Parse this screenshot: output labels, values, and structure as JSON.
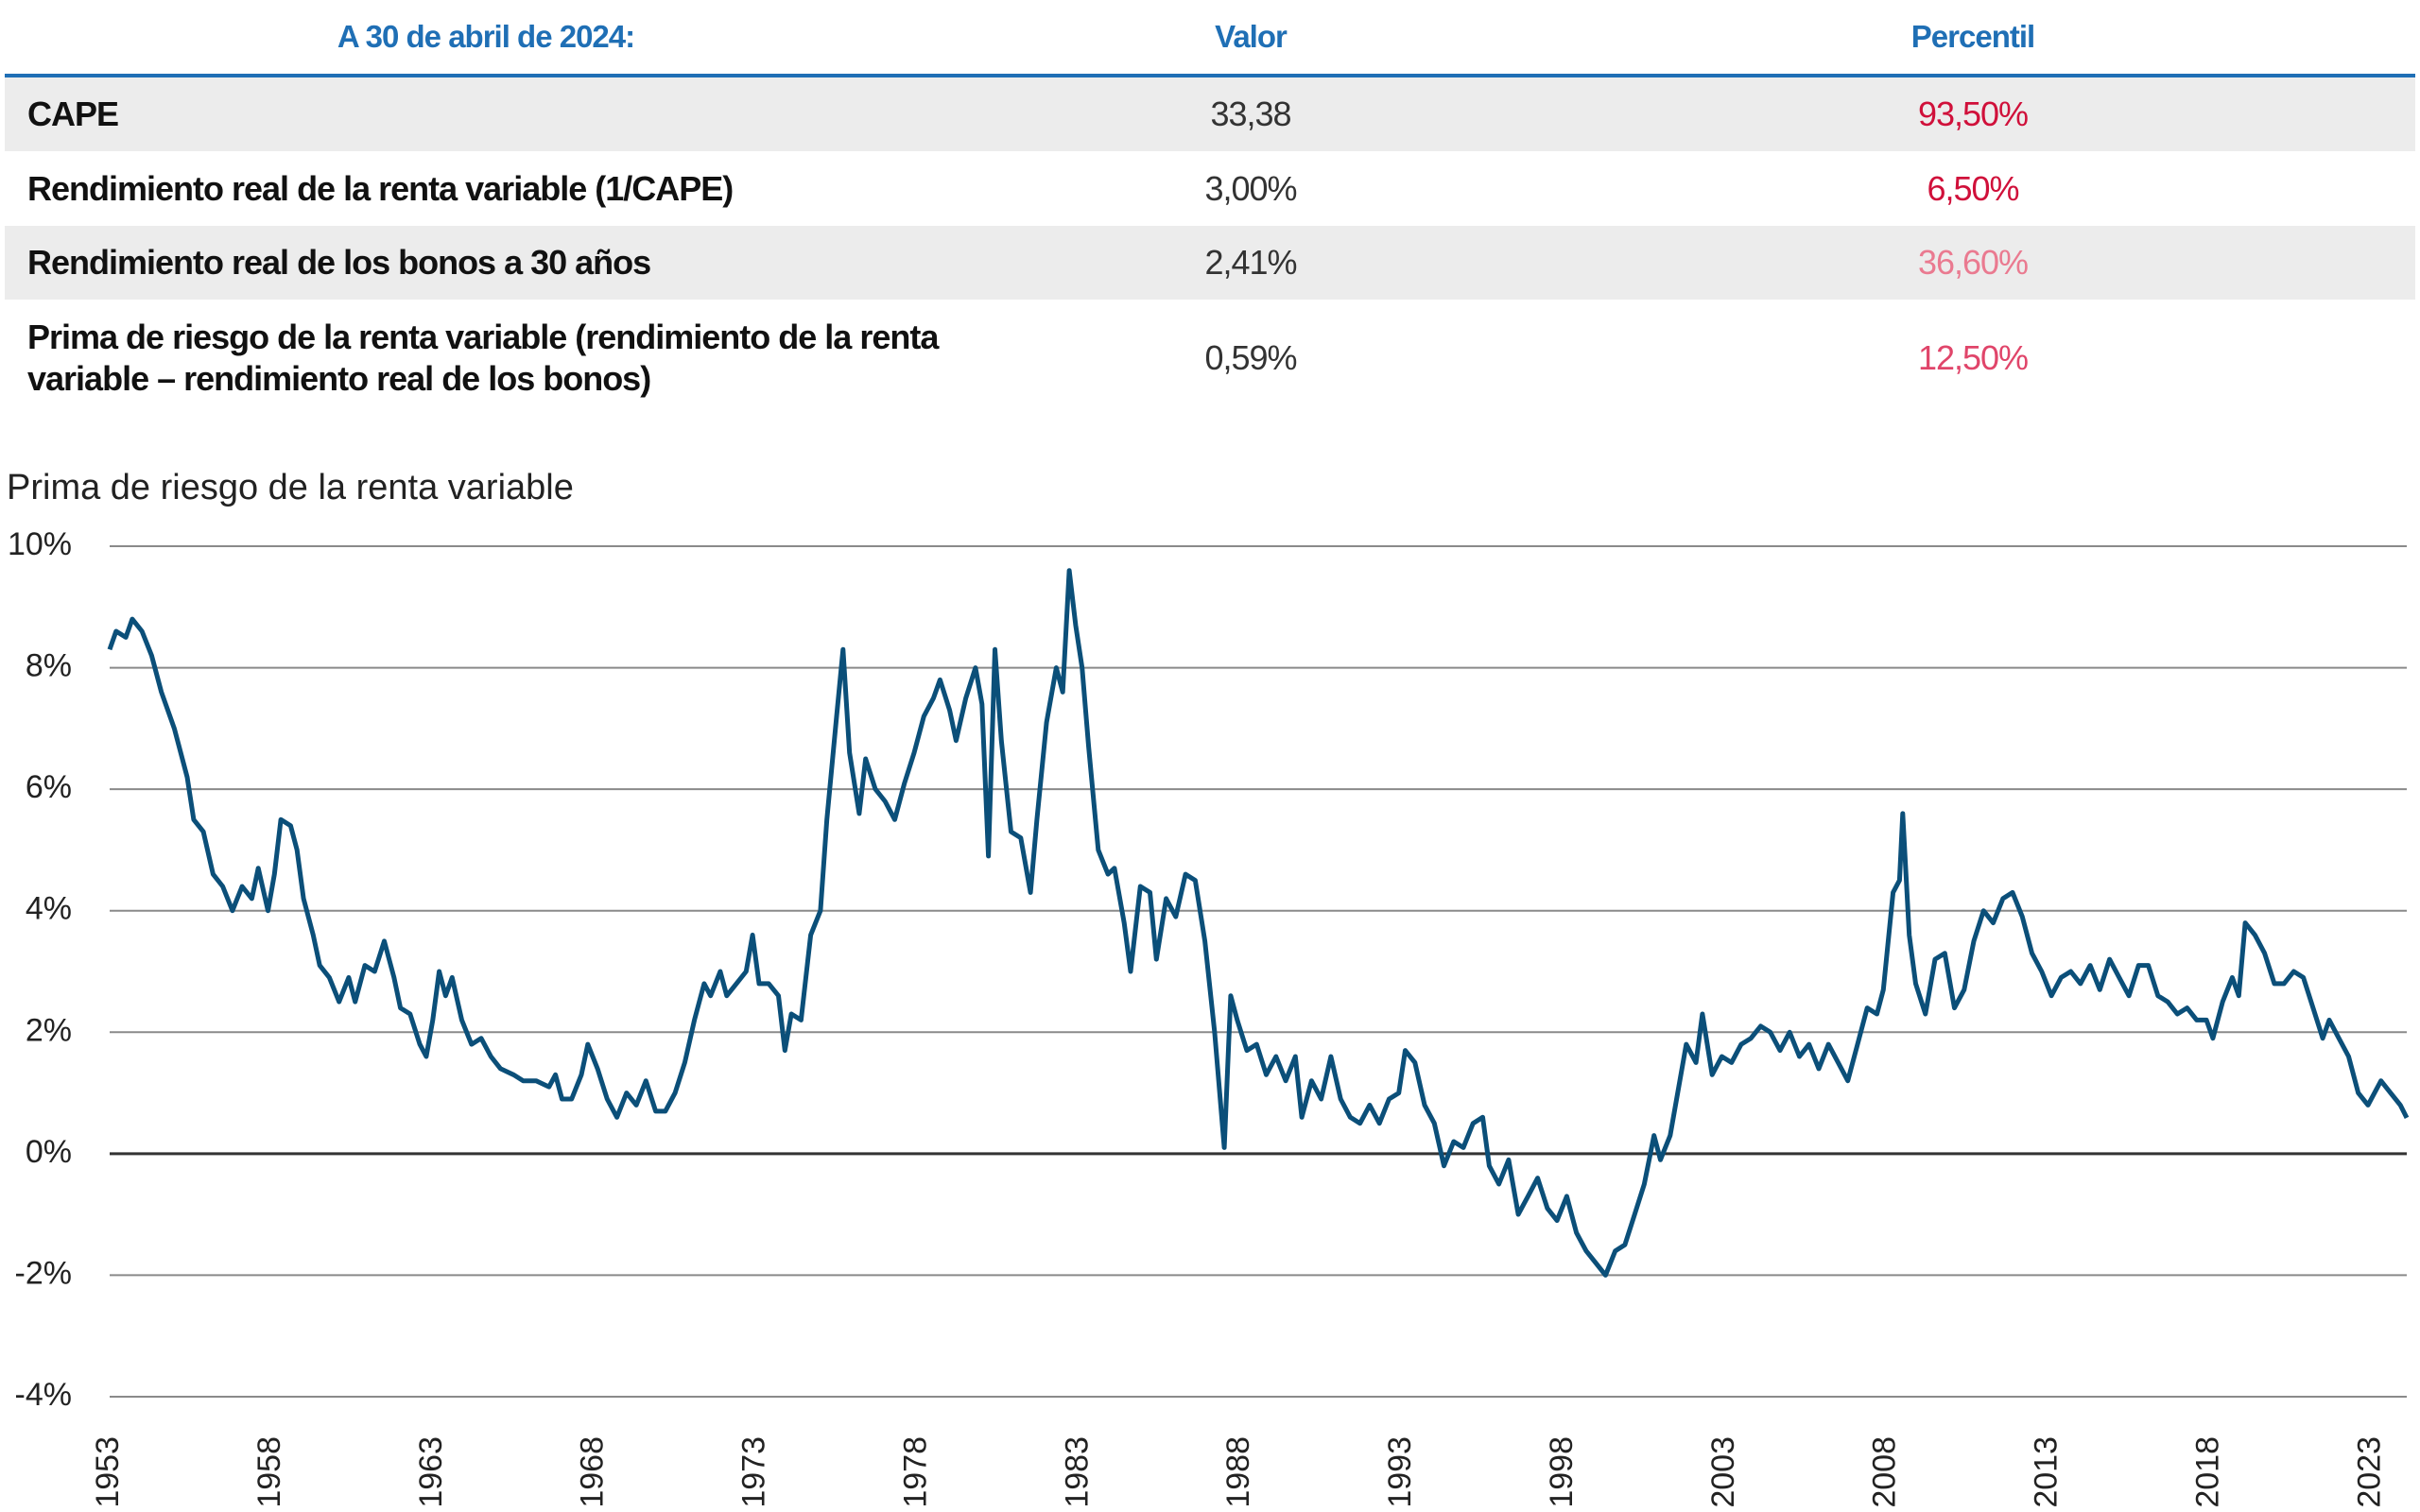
{
  "table": {
    "header": [
      "A 30 de abril de 2024:",
      "Valor",
      "Percentil"
    ],
    "rows": [
      {
        "label": "CAPE",
        "value": "33,38",
        "percentile": "93,50%",
        "color": "#d0103a"
      },
      {
        "label": "Rendimiento real de la renta variable (1/CAPE)",
        "value": "3,00%",
        "percentile": "6,50%",
        "color": "#d0103a"
      },
      {
        "label": "Rendimiento real de los bonos a 30 años",
        "value": "2,41%",
        "percentile": "36,60%",
        "color": "#ea7a90"
      },
      {
        "label": "Prima de riesgo de la renta variable (rendimiento de la renta variable – rendimiento real de los bonos)",
        "value": "0,59%",
        "percentile": "12,50%",
        "color": "#e0456a"
      }
    ]
  },
  "chart_data": {
    "type": "line",
    "title": "Prima de riesgo de la renta variable",
    "xlim": [
      1953,
      2024.1
    ],
    "xticks": [
      1953,
      1958,
      1963,
      1968,
      1973,
      1978,
      1983,
      1988,
      1993,
      1998,
      2003,
      2008,
      2013,
      2018,
      2023
    ],
    "ylim": [
      -4,
      10
    ],
    "yticks": [
      {
        "value": -4,
        "label": "-4%"
      },
      {
        "value": -2,
        "label": "-2%"
      },
      {
        "value": 0,
        "label": "0%"
      },
      {
        "value": 2,
        "label": "2%"
      },
      {
        "value": 4,
        "label": "4%"
      },
      {
        "value": 6,
        "label": "6%"
      },
      {
        "value": 8,
        "label": "8%"
      },
      {
        "value": 10,
        "label": "10%"
      }
    ],
    "grid": true,
    "series": [
      {
        "name": "Prima de riesgo de la renta variable",
        "color": "#0b4f79",
        "x": [
          1953.0,
          1953.2,
          1953.5,
          1953.7,
          1954.0,
          1954.3,
          1954.6,
          1955.0,
          1955.4,
          1955.6,
          1955.9,
          1956.2,
          1956.5,
          1956.8,
          1957.1,
          1957.4,
          1957.6,
          1957.9,
          1958.1,
          1958.3,
          1958.6,
          1958.8,
          1959.0,
          1959.3,
          1959.5,
          1959.8,
          1960.1,
          1960.4,
          1960.6,
          1960.9,
          1961.2,
          1961.5,
          1961.8,
          1962.0,
          1962.3,
          1962.6,
          1962.8,
          1963.0,
          1963.2,
          1963.4,
          1963.6,
          1963.9,
          1964.2,
          1964.5,
          1964.8,
          1965.1,
          1965.5,
          1965.8,
          1966.2,
          1966.6,
          1966.8,
          1967.0,
          1967.3,
          1967.6,
          1967.8,
          1968.1,
          1968.4,
          1968.7,
          1969.0,
          1969.3,
          1969.6,
          1969.9,
          1970.2,
          1970.5,
          1970.8,
          1971.1,
          1971.4,
          1971.6,
          1971.9,
          1972.1,
          1972.4,
          1972.7,
          1972.9,
          1973.1,
          1973.4,
          1973.7,
          1973.9,
          1974.1,
          1974.4,
          1974.7,
          1975.0,
          1975.2,
          1975.5,
          1975.7,
          1975.9,
          1976.2,
          1976.4,
          1976.7,
          1977.0,
          1977.3,
          1977.6,
          1977.9,
          1978.2,
          1978.5,
          1978.7,
          1979.0,
          1979.2,
          1979.5,
          1979.8,
          1980.0,
          1980.2,
          1980.4,
          1980.6,
          1980.9,
          1981.2,
          1981.5,
          1981.7,
          1982.0,
          1982.3,
          1982.5,
          1982.7,
          1982.9,
          1983.1,
          1983.3,
          1983.6,
          1983.9,
          1984.1,
          1984.4,
          1984.6,
          1984.9,
          1985.2,
          1985.4,
          1985.7,
          1986.0,
          1986.3,
          1986.6,
          1986.9,
          1987.2,
          1987.5,
          1987.7,
          1987.9,
          1988.2,
          1988.5,
          1988.8,
          1989.1,
          1989.4,
          1989.7,
          1989.9,
          1990.2,
          1990.5,
          1990.8,
          1991.1,
          1991.4,
          1991.7,
          1992.0,
          1992.3,
          1992.6,
          1992.9,
          1993.1,
          1993.4,
          1993.7,
          1994.0,
          1994.3,
          1994.6,
          1994.9,
          1995.2,
          1995.5,
          1995.7,
          1996.0,
          1996.3,
          1996.6,
          1996.9,
          1997.2,
          1997.5,
          1997.8,
          1998.1,
          1998.4,
          1998.7,
          1999.0,
          1999.3,
          1999.6,
          1999.9,
          2000.2,
          2000.5,
          2000.8,
          2001.0,
          2001.3,
          2001.6,
          2001.8,
          2002.1,
          2002.3,
          2002.6,
          2002.9,
          2003.2,
          2003.5,
          2003.8,
          2004.1,
          2004.4,
          2004.7,
          2005.0,
          2005.3,
          2005.6,
          2005.9,
          2006.2,
          2006.5,
          2006.8,
          2007.1,
          2007.4,
          2007.7,
          2007.9,
          2008.2,
          2008.4,
          2008.5,
          2008.7,
          2008.9,
          2009.2,
          2009.5,
          2009.8,
          2010.1,
          2010.4,
          2010.7,
          2011.0,
          2011.3,
          2011.6,
          2011.9,
          2012.2,
          2012.5,
          2012.8,
          2013.1,
          2013.4,
          2013.7,
          2014.0,
          2014.3,
          2014.6,
          2014.9,
          2015.2,
          2015.5,
          2015.8,
          2016.1,
          2016.4,
          2016.7,
          2017.0,
          2017.3,
          2017.6,
          2017.9,
          2018.1,
          2018.4,
          2018.7,
          2018.9,
          2019.1,
          2019.4,
          2019.7,
          2020.0,
          2020.3,
          2020.6,
          2020.9,
          2021.2,
          2021.5,
          2021.7,
          2022.0,
          2022.3,
          2022.6,
          2022.9,
          2023.3,
          2023.6,
          2023.9,
          2024.1
        ],
        "values": [
          8.3,
          8.6,
          8.5,
          8.8,
          8.6,
          8.2,
          7.6,
          7.0,
          6.2,
          5.5,
          5.3,
          4.6,
          4.4,
          4.0,
          4.4,
          4.2,
          4.7,
          4.0,
          4.6,
          5.5,
          5.4,
          5.0,
          4.2,
          3.6,
          3.1,
          2.9,
          2.5,
          2.9,
          2.5,
          3.1,
          3.0,
          3.5,
          2.9,
          2.4,
          2.3,
          1.8,
          1.6,
          2.2,
          3.0,
          2.6,
          2.9,
          2.2,
          1.8,
          1.9,
          1.6,
          1.4,
          1.3,
          1.2,
          1.2,
          1.1,
          1.3,
          0.9,
          0.9,
          1.3,
          1.8,
          1.4,
          0.9,
          0.6,
          1.0,
          0.8,
          1.2,
          0.7,
          0.7,
          1.0,
          1.5,
          2.2,
          2.8,
          2.6,
          3.0,
          2.6,
          2.8,
          3.0,
          3.6,
          2.8,
          2.8,
          2.6,
          1.7,
          2.3,
          2.2,
          3.6,
          4.0,
          5.5,
          7.2,
          8.3,
          6.6,
          5.6,
          6.5,
          6.0,
          5.8,
          5.5,
          6.1,
          6.6,
          7.2,
          7.5,
          7.8,
          7.3,
          6.8,
          7.5,
          8.0,
          7.4,
          4.9,
          8.3,
          6.8,
          5.3,
          5.2,
          4.3,
          5.5,
          7.1,
          8.0,
          7.6,
          9.6,
          8.7,
          8.0,
          6.7,
          5.0,
          4.6,
          4.7,
          3.8,
          3.0,
          4.4,
          4.3,
          3.2,
          4.2,
          3.9,
          4.6,
          4.5,
          3.5,
          2.0,
          0.1,
          2.6,
          2.2,
          1.7,
          1.8,
          1.3,
          1.6,
          1.2,
          1.6,
          0.6,
          1.2,
          0.9,
          1.6,
          0.9,
          0.6,
          0.5,
          0.8,
          0.5,
          0.9,
          1.0,
          1.7,
          1.5,
          0.8,
          0.5,
          -0.2,
          0.2,
          0.1,
          0.5,
          0.6,
          -0.2,
          -0.5,
          -0.1,
          -1.0,
          -0.7,
          -0.4,
          -0.9,
          -1.1,
          -0.7,
          -1.3,
          -1.6,
          -1.8,
          -2.0,
          -1.6,
          -1.5,
          -1.0,
          -0.5,
          0.3,
          -0.1,
          0.3,
          1.2,
          1.8,
          1.5,
          2.3,
          1.3,
          1.6,
          1.5,
          1.8,
          1.9,
          2.1,
          2.0,
          1.7,
          2.0,
          1.6,
          1.8,
          1.4,
          1.8,
          1.5,
          1.2,
          1.8,
          2.4,
          2.3,
          2.7,
          4.3,
          4.5,
          5.6,
          3.6,
          2.8,
          2.3,
          3.2,
          3.3,
          2.4,
          2.7,
          3.5,
          4.0,
          3.8,
          4.2,
          4.3,
          3.9,
          3.3,
          3.0,
          2.6,
          2.9,
          3.0,
          2.8,
          3.1,
          2.7,
          3.2,
          2.9,
          2.6,
          3.1,
          3.1,
          2.6,
          2.5,
          2.3,
          2.4,
          2.2,
          2.2,
          1.9,
          2.5,
          2.9,
          2.6,
          3.8,
          3.6,
          3.3,
          2.8,
          2.8,
          3.0,
          2.9,
          2.4,
          1.9,
          2.2,
          1.9,
          1.6,
          1.0,
          0.8,
          1.2,
          1.0,
          0.8,
          0.59
        ]
      }
    ]
  }
}
